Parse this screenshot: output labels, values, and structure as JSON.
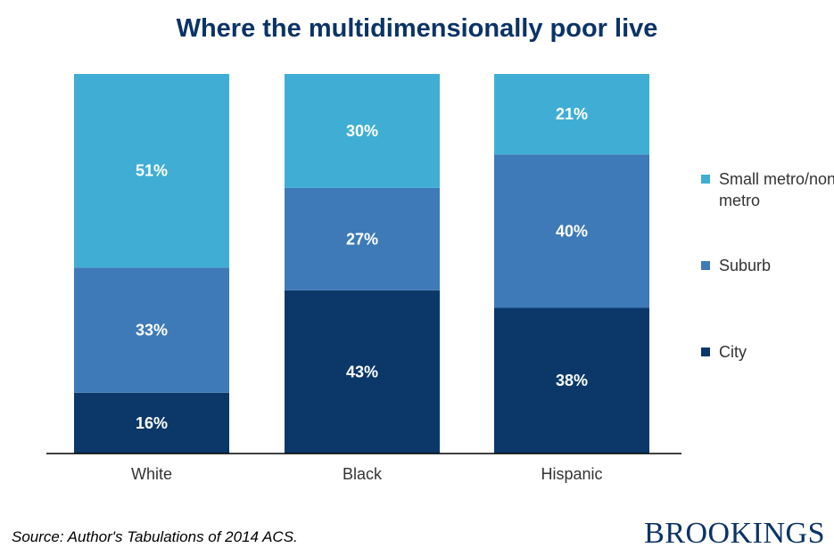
{
  "chart_data": {
    "type": "stacked-bar",
    "title": "Where the multidimensionally poor live",
    "categories": [
      "White",
      "Black",
      "Hispanic"
    ],
    "series": [
      {
        "name": "City",
        "color": "#0b3868",
        "values": [
          16,
          43,
          38
        ]
      },
      {
        "name": "Suburb",
        "color": "#3e7ab8",
        "values": [
          33,
          27,
          40
        ]
      },
      {
        "name": "Small metro/non metro",
        "color": "#40aed4",
        "values": [
          51,
          30,
          21
        ]
      }
    ],
    "value_labels": [
      [
        "16%",
        "43%",
        "38%"
      ],
      [
        "33%",
        "27%",
        "40%"
      ],
      [
        "51%",
        "30%",
        "21%"
      ]
    ],
    "ylim": [
      0,
      100
    ],
    "legend": [
      {
        "label": "Small metro/non metro",
        "color": "#40aed4"
      },
      {
        "label": "Suburb",
        "color": "#3e7ab8"
      },
      {
        "label": "City",
        "color": "#0b3868"
      }
    ]
  },
  "source_note": "Source: Author's Tabulations of 2014 ACS.",
  "brand": "BROOKINGS"
}
